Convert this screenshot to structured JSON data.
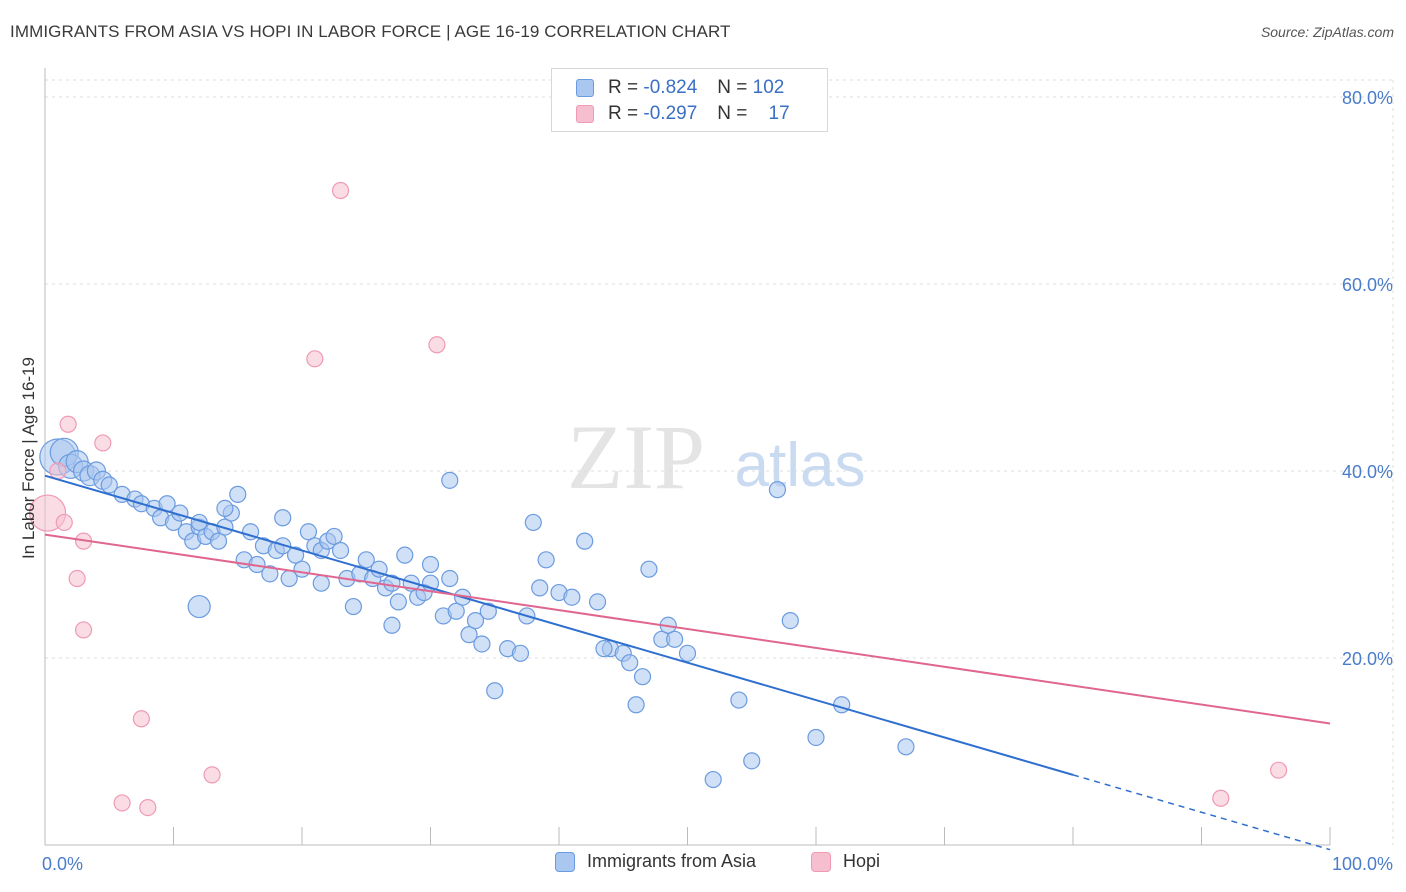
{
  "title": "IMMIGRANTS FROM ASIA VS HOPI IN LABOR FORCE | AGE 16-19 CORRELATION CHART",
  "source": "Source: ZipAtlas.com",
  "watermark": {
    "zip": "ZIP",
    "atlas": "atlas"
  },
  "legend": {
    "rows": [
      {
        "r_label": "R =",
        "r_value": "-0.824",
        "n_label": "N =",
        "n_value": "102"
      },
      {
        "r_label": "R =",
        "r_value": "-0.297",
        "n_label": "N =",
        "n_value": "17"
      }
    ]
  },
  "bottom_legend": [
    "Immigrants from Asia",
    "Hopi"
  ],
  "colors": {
    "asia_fill": "#a9c7ef",
    "asia_stroke": "#6b9be0",
    "asia_line": "#2f6fcf",
    "hopi_fill": "#f6bfd0",
    "hopi_stroke": "#ef9ab4",
    "hopi_line": "#e0668f",
    "tick": "#4a7cc9",
    "grid": "#dcdcdc"
  },
  "chart_data": {
    "type": "scatter",
    "title": "IMMIGRANTS FROM ASIA VS HOPI IN LABOR FORCE | AGE 16-19 CORRELATION CHART",
    "ylabel": "In Labor Force | Age 16-19",
    "xlabel": "",
    "xlim": [
      0,
      100
    ],
    "ylim": [
      0,
      80
    ],
    "x_tick_labels": [
      "0.0%",
      "100.0%"
    ],
    "y_ticks": [
      20,
      40,
      60,
      80
    ],
    "y_tick_labels": [
      "20.0%",
      "40.0%",
      "60.0%",
      "80.0%"
    ],
    "grid": true,
    "series": [
      {
        "name": "Immigrants from Asia",
        "r": -0.824,
        "n": 102,
        "trend": {
          "x0": 0,
          "y0": 39.5,
          "x1": 80,
          "y1": 7.5,
          "dash_to": [
            100,
            -0.5
          ]
        },
        "points": [
          [
            1.0,
            41.5,
            18
          ],
          [
            1.5,
            42.0,
            14
          ],
          [
            2.0,
            40.5,
            12
          ],
          [
            2.5,
            41.0,
            11
          ],
          [
            3.0,
            40.0,
            10
          ],
          [
            3.5,
            39.5,
            10
          ],
          [
            4.0,
            40.0,
            9
          ],
          [
            4.5,
            39.0,
            9
          ],
          [
            5.0,
            38.5,
            8
          ],
          [
            6.0,
            37.5,
            8
          ],
          [
            7.0,
            37.0,
            8
          ],
          [
            7.5,
            36.5,
            8
          ],
          [
            8.5,
            36.0,
            8
          ],
          [
            9.0,
            35.0,
            8
          ],
          [
            9.5,
            36.5,
            8
          ],
          [
            10.0,
            34.5,
            8
          ],
          [
            10.5,
            35.5,
            8
          ],
          [
            11.0,
            33.5,
            8
          ],
          [
            11.5,
            32.5,
            8
          ],
          [
            12.0,
            34.0,
            8
          ],
          [
            12.5,
            33.0,
            8
          ],
          [
            13.0,
            33.5,
            8
          ],
          [
            13.5,
            32.5,
            8
          ],
          [
            14.0,
            34.0,
            8
          ],
          [
            14.5,
            35.5,
            8
          ],
          [
            15.0,
            37.5,
            8
          ],
          [
            15.5,
            30.5,
            8
          ],
          [
            16.0,
            33.5,
            8
          ],
          [
            16.5,
            30.0,
            8
          ],
          [
            17.0,
            32.0,
            8
          ],
          [
            17.5,
            29.0,
            8
          ],
          [
            18.0,
            31.5,
            8
          ],
          [
            18.5,
            35.0,
            8
          ],
          [
            19.0,
            28.5,
            8
          ],
          [
            19.5,
            31.0,
            8
          ],
          [
            20.0,
            29.5,
            8
          ],
          [
            20.5,
            33.5,
            8
          ],
          [
            21.0,
            32.0,
            8
          ],
          [
            21.5,
            31.5,
            8
          ],
          [
            22.0,
            32.5,
            8
          ],
          [
            22.5,
            33.0,
            8
          ],
          [
            23.0,
            31.5,
            8
          ],
          [
            23.5,
            28.5,
            8
          ],
          [
            24.0,
            25.5,
            8
          ],
          [
            24.5,
            29.0,
            8
          ],
          [
            25.0,
            30.5,
            8
          ],
          [
            25.5,
            28.5,
            8
          ],
          [
            26.0,
            29.5,
            8
          ],
          [
            26.5,
            27.5,
            8
          ],
          [
            27.0,
            23.5,
            8
          ],
          [
            27.5,
            26.0,
            8
          ],
          [
            28.0,
            31.0,
            8
          ],
          [
            28.5,
            28.0,
            8
          ],
          [
            29.0,
            26.5,
            8
          ],
          [
            29.5,
            27.0,
            8
          ],
          [
            30.0,
            30.0,
            8
          ],
          [
            31.0,
            24.5,
            8
          ],
          [
            31.5,
            28.5,
            8
          ],
          [
            32.0,
            25.0,
            8
          ],
          [
            32.5,
            26.5,
            8
          ],
          [
            33.0,
            22.5,
            8
          ],
          [
            33.5,
            24.0,
            8
          ],
          [
            34.0,
            21.5,
            8
          ],
          [
            34.5,
            25.0,
            8
          ],
          [
            35.0,
            16.5,
            8
          ],
          [
            36.0,
            21.0,
            8
          ],
          [
            37.0,
            20.5,
            8
          ],
          [
            37.5,
            24.5,
            8
          ],
          [
            38.0,
            34.5,
            8
          ],
          [
            38.5,
            27.5,
            8
          ],
          [
            39.0,
            30.5,
            8
          ],
          [
            40.0,
            27.0,
            8
          ],
          [
            41.0,
            26.5,
            8
          ],
          [
            42.0,
            32.5,
            8
          ],
          [
            43.0,
            26.0,
            8
          ],
          [
            44.0,
            21.0,
            8
          ],
          [
            45.0,
            20.5,
            8
          ],
          [
            45.5,
            19.5,
            8
          ],
          [
            46.0,
            15.0,
            8
          ],
          [
            46.5,
            18.0,
            8
          ],
          [
            47.0,
            29.5,
            8
          ],
          [
            48.0,
            22.0,
            8
          ],
          [
            48.5,
            23.5,
            8
          ],
          [
            49.0,
            22.0,
            8
          ],
          [
            50.0,
            20.5,
            8
          ],
          [
            52.0,
            7.0,
            8
          ],
          [
            54.0,
            15.5,
            8
          ],
          [
            55.0,
            9.0,
            8
          ],
          [
            57.0,
            38.0,
            8
          ],
          [
            58.0,
            24.0,
            8
          ],
          [
            60.0,
            11.5,
            8
          ],
          [
            62.0,
            15.0,
            8
          ],
          [
            67.0,
            10.5,
            8
          ],
          [
            12.0,
            34.5,
            8
          ],
          [
            14.0,
            36.0,
            8
          ],
          [
            18.5,
            32.0,
            8
          ],
          [
            21.5,
            28.0,
            8
          ],
          [
            27.0,
            28.0,
            8
          ],
          [
            31.5,
            39.0,
            8
          ],
          [
            43.5,
            21.0,
            8
          ],
          [
            30.0,
            28.0,
            8
          ],
          [
            12.0,
            25.5,
            11
          ]
        ]
      },
      {
        "name": "Hopi",
        "r": -0.297,
        "n": 17,
        "trend": {
          "x0": 0,
          "y0": 33.2,
          "x1": 100,
          "y1": 13.0
        },
        "points": [
          [
            0.2,
            35.5,
            18
          ],
          [
            1.5,
            34.5,
            8
          ],
          [
            1.0,
            40.0,
            8
          ],
          [
            1.8,
            45.0,
            8
          ],
          [
            3.0,
            32.5,
            8
          ],
          [
            2.5,
            28.5,
            8
          ],
          [
            3.0,
            23.0,
            8
          ],
          [
            4.5,
            43.0,
            8
          ],
          [
            6.0,
            4.5,
            8
          ],
          [
            7.5,
            13.5,
            8
          ],
          [
            8.0,
            4.0,
            8
          ],
          [
            13.0,
            7.5,
            8
          ],
          [
            21.0,
            52.0,
            8
          ],
          [
            23.0,
            70.0,
            8
          ],
          [
            30.5,
            53.5,
            8
          ],
          [
            91.5,
            5.0,
            8
          ],
          [
            96.0,
            8.0,
            8
          ]
        ]
      }
    ]
  }
}
